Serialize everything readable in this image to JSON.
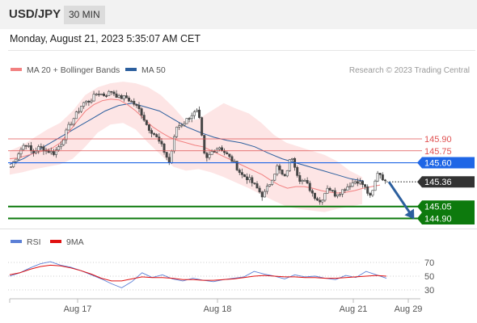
{
  "header": {
    "pair": "USD/JPY",
    "timeframe": "30 MIN"
  },
  "timestamp": "Monday, August 21, 2023 5:35:07 AM CET",
  "legend": {
    "ma20": "MA 20 + Bollinger Bands",
    "ma50": "MA 50"
  },
  "credit": "Research © 2023 Trading Central",
  "rsi_legend": {
    "rsi": "RSI",
    "ma9": "9MA"
  },
  "colors": {
    "ma20": "#f28080",
    "ma50": "#2c5f9e",
    "band": "#fde0e0",
    "support": "#0d7a0d",
    "pivot": "#1f66e6",
    "resistance": "#e05050",
    "last": "#333333",
    "rsi": "#5b7fd6",
    "rsi_ma": "#e01010",
    "candle": "#444444"
  },
  "chart_data": [
    {
      "type": "candlestick",
      "title": "USD/JPY",
      "x": [
        "Aug 17",
        "Aug 18",
        "Aug 21",
        "Aug 29"
      ],
      "ylim": [
        144.7,
        146.65
      ],
      "grid": false,
      "legend_position": "top-left",
      "series": [
        {
          "name": "MA 20 + Bollinger Bands"
        },
        {
          "name": "MA 50"
        }
      ],
      "price_levels": [
        {
          "value": 145.9,
          "label": "145.90",
          "kind": "resistance"
        },
        {
          "value": 145.75,
          "label": "145.75",
          "kind": "resistance"
        },
        {
          "value": 145.6,
          "label": "145.60",
          "kind": "pivot"
        },
        {
          "value": 145.36,
          "label": "145.36",
          "kind": "last"
        },
        {
          "value": 145.05,
          "label": "145.05",
          "kind": "support"
        },
        {
          "value": 144.9,
          "label": "144.90",
          "kind": "support"
        }
      ],
      "close_path": [
        145.55,
        145.72,
        145.85,
        145.72,
        145.8,
        145.75,
        145.72,
        145.85,
        146.05,
        146.2,
        146.35,
        146.38,
        146.48,
        146.45,
        146.5,
        146.42,
        146.42,
        146.35,
        146.25,
        146.05,
        145.95,
        145.8,
        145.6,
        146.05,
        146.1,
        146.2,
        146.25,
        145.62,
        145.75,
        145.8,
        145.7,
        145.6,
        145.45,
        145.4,
        145.3,
        145.18,
        145.35,
        145.55,
        145.4,
        145.7,
        145.4,
        145.35,
        145.2,
        145.1,
        145.3,
        145.2,
        145.25,
        145.32,
        145.38,
        145.32,
        145.15,
        145.5,
        145.36
      ],
      "ma20": [
        145.65,
        145.66,
        145.69,
        145.72,
        145.75,
        145.78,
        145.85,
        145.98,
        146.12,
        146.25,
        146.33,
        146.38,
        146.4,
        146.39,
        146.33,
        146.25,
        146.15,
        146.05,
        145.98,
        145.92,
        145.88,
        145.85,
        145.82,
        145.8,
        145.75,
        145.7,
        145.65,
        145.6,
        145.55,
        145.5,
        145.45,
        145.38,
        145.32,
        145.28,
        145.3,
        145.3,
        145.28,
        145.25,
        145.23,
        145.22,
        145.23,
        145.25,
        145.28,
        145.3,
        145.32
      ],
      "ma50": [
        145.58,
        145.65,
        145.75,
        145.85,
        145.95,
        146.05,
        146.15,
        146.25,
        146.32,
        146.35,
        146.3,
        146.25,
        146.15,
        146.05,
        145.98,
        145.92,
        145.88,
        145.85,
        145.8,
        145.72,
        145.65,
        145.6,
        145.55,
        145.5,
        145.45,
        145.4,
        145.37
      ],
      "bb_upper": [
        145.75,
        145.82,
        145.92,
        146.02,
        146.1,
        146.25,
        146.45,
        146.55,
        146.6,
        146.62,
        146.6,
        146.55,
        146.45,
        146.3,
        146.12,
        146.15,
        146.25,
        146.35,
        146.28,
        146.22,
        146.1,
        145.95,
        145.85,
        145.8,
        145.75,
        145.7,
        145.62,
        145.5,
        145.42
      ],
      "bb_lower": [
        145.45,
        145.48,
        145.52,
        145.55,
        145.58,
        145.65,
        145.8,
        145.98,
        146.08,
        146.1,
        146.02,
        145.85,
        145.7,
        145.55,
        145.5,
        145.52,
        145.48,
        145.42,
        145.35,
        145.28,
        145.2,
        145.12,
        145.05,
        145.02,
        145.0,
        144.98,
        145.02,
        145.05,
        145.08
      ],
      "forecast_arrow": {
        "from": 145.36,
        "to": 144.92
      }
    },
    {
      "type": "line",
      "title": "RSI",
      "ylim": [
        20,
        80
      ],
      "yticks": [
        30,
        50,
        70
      ],
      "series": [
        {
          "name": "RSI",
          "values": [
            50,
            55,
            62,
            68,
            71,
            66,
            63,
            58,
            52,
            46,
            39,
            33,
            42,
            55,
            48,
            52,
            46,
            43,
            47,
            44,
            42,
            45,
            47,
            49,
            57,
            53,
            50,
            46,
            52,
            49,
            50,
            47,
            45,
            51,
            48,
            57,
            52,
            47
          ]
        },
        {
          "name": "9MA",
          "values": [
            52,
            55,
            60,
            64,
            66,
            65,
            62,
            58,
            53,
            47,
            43,
            43,
            46,
            49,
            48,
            48,
            47,
            45,
            45,
            44,
            44,
            45,
            46,
            48,
            50,
            51,
            50,
            49,
            49,
            48,
            48,
            47,
            47,
            48,
            49,
            50,
            51,
            50
          ]
        }
      ]
    }
  ]
}
